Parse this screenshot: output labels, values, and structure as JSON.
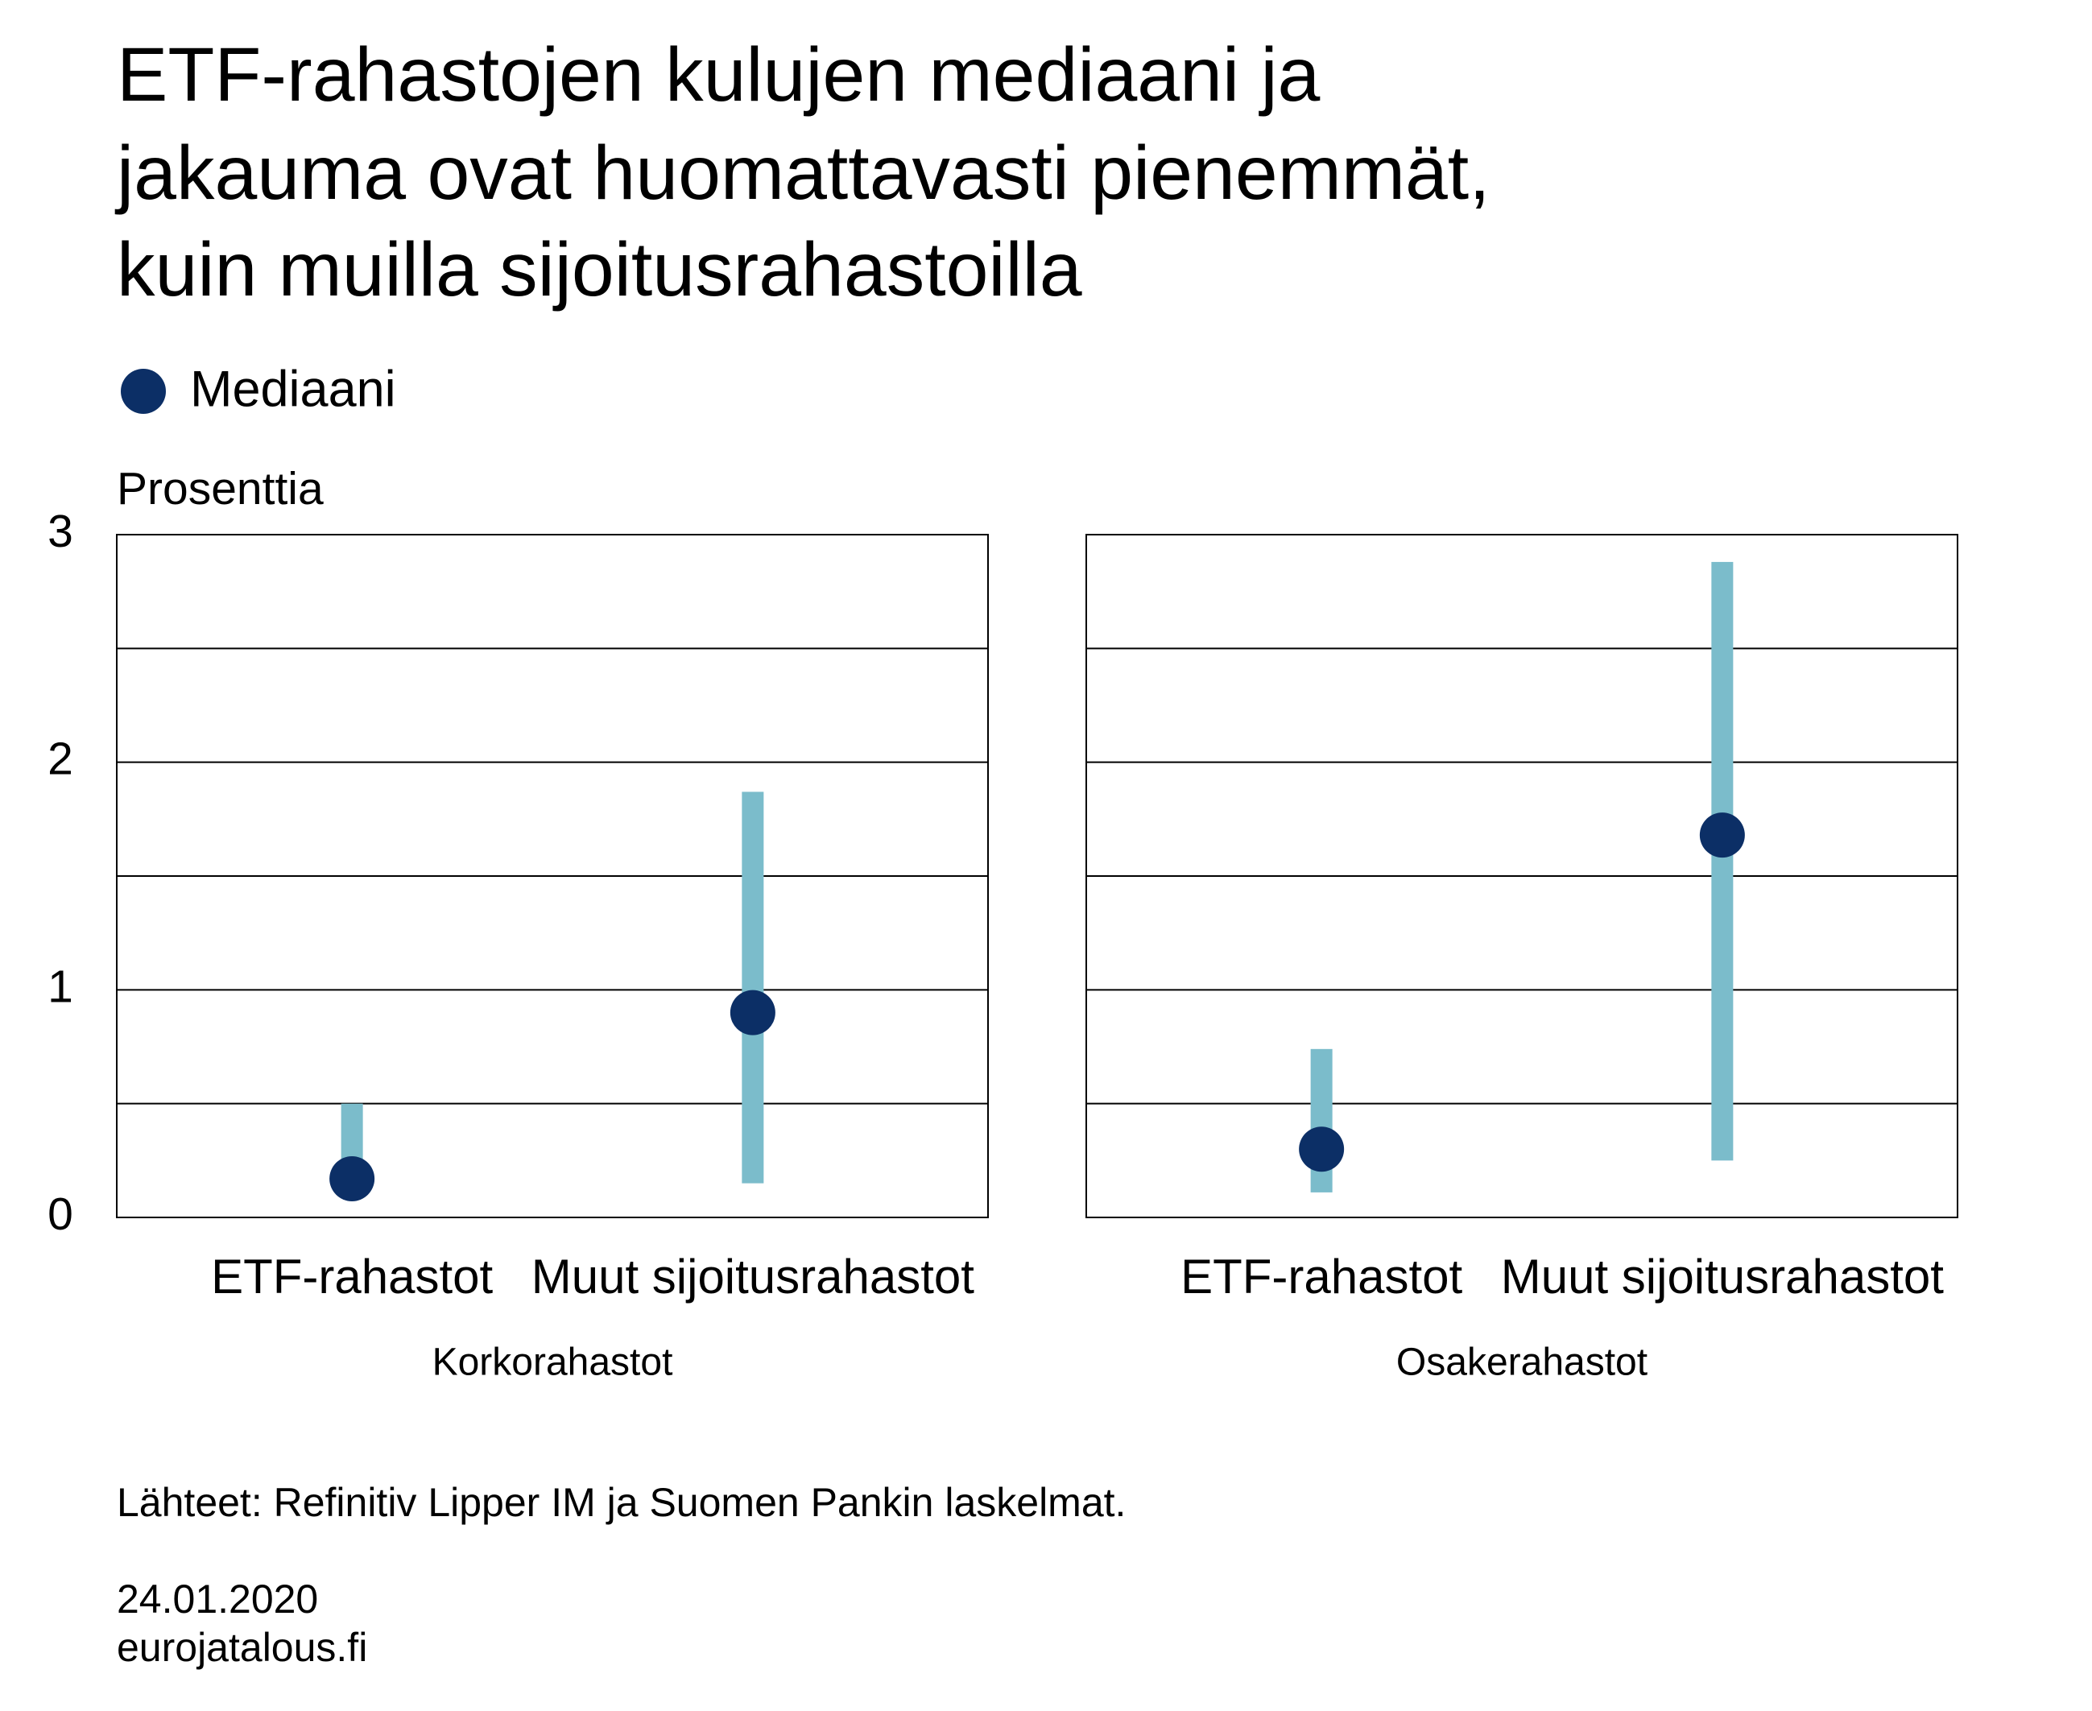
{
  "title": [
    "ETF-rahastojen kulujen mediaani ja",
    "jakauma ovat huomattavasti pienemmät,",
    "kuin muilla sijoitusrahastoilla"
  ],
  "legend": {
    "name": "Mediaani",
    "color": "#0c2f66"
  },
  "range_color": "#7bbccb",
  "ylabel": "Prosenttia",
  "chart_data": [
    {
      "type": "dot-range",
      "xlabel": "Korkorahastot",
      "categories": [
        "ETF-rahastot",
        "Muut sijoitusrahastot"
      ],
      "low": [
        0.13,
        0.15
      ],
      "high": [
        0.5,
        1.87
      ],
      "median": [
        0.17,
        0.9
      ],
      "ylim": [
        0,
        3
      ],
      "yticks": [
        0,
        1,
        2,
        3
      ],
      "grid_lines": [
        0.5,
        1,
        1.5,
        2,
        2.5
      ]
    },
    {
      "type": "dot-range",
      "xlabel": "Osakerahastot",
      "categories": [
        "ETF-rahastot",
        "Muut sijoitusrahastot"
      ],
      "low": [
        0.11,
        0.25
      ],
      "high": [
        0.74,
        2.88
      ],
      "median": [
        0.3,
        1.68
      ],
      "ylim": [
        0,
        3
      ],
      "grid_lines": [
        0.5,
        1,
        1.5,
        2,
        2.5
      ]
    }
  ],
  "source": "Lähteet: Refinitiv Lipper IM ja Suomen Pankin laskelmat.",
  "date": "24.01.2020",
  "site": "eurojatalous.fi"
}
